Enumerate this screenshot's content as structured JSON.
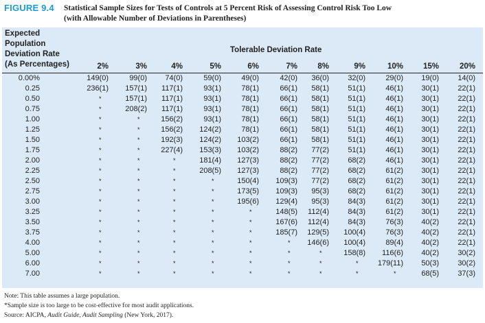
{
  "header": {
    "figure_label": "FIGURE 9.4",
    "title_line1": "Statistical Sample Sizes for Tests of Controls at 5 Percent Risk of Assessing Control Risk Too Low",
    "title_line2": "(with Allowable Number of Deviations in Parentheses)"
  },
  "table": {
    "row_header_lines": [
      "Expected",
      "Population",
      "Deviation Rate",
      "(As Percentages)"
    ],
    "group_header": "Tolerable Deviation Rate",
    "columns": [
      "2%",
      "3%",
      "4%",
      "5%",
      "6%",
      "7%",
      "8%",
      "9%",
      "10%",
      "15%",
      "20%"
    ],
    "rows": [
      {
        "rate": "0.00%",
        "cells": [
          "149(0)",
          "99(0)",
          "74(0)",
          "59(0)",
          "49(0)",
          "42(0)",
          "36(0)",
          "32(0)",
          "29(0)",
          "19(0)",
          "14(0)"
        ]
      },
      {
        "rate": "0.25",
        "cells": [
          "236(1)",
          "157(1)",
          "117(1)",
          "93(1)",
          "78(1)",
          "66(1)",
          "58(1)",
          "51(1)",
          "46(1)",
          "30(1)",
          "22(1)"
        ]
      },
      {
        "rate": "0.50",
        "cells": [
          "*",
          "157(1)",
          "117(1)",
          "93(1)",
          "78(1)",
          "66(1)",
          "58(1)",
          "51(1)",
          "46(1)",
          "30(1)",
          "22(1)"
        ]
      },
      {
        "rate": "0.75",
        "cells": [
          "*",
          "208(2)",
          "117(1)",
          "93(1)",
          "78(1)",
          "66(1)",
          "58(1)",
          "51(1)",
          "46(1)",
          "30(1)",
          "22(1)"
        ]
      },
      {
        "rate": "1.00",
        "cells": [
          "*",
          "*",
          "156(2)",
          "93(1)",
          "78(1)",
          "66(1)",
          "58(1)",
          "51(1)",
          "46(1)",
          "30(1)",
          "22(1)"
        ]
      },
      {
        "rate": "1.25",
        "cells": [
          "*",
          "*",
          "156(2)",
          "124(2)",
          "78(1)",
          "66(1)",
          "58(1)",
          "51(1)",
          "46(1)",
          "30(1)",
          "22(1)"
        ]
      },
      {
        "rate": "1.50",
        "cells": [
          "*",
          "*",
          "192(3)",
          "124(2)",
          "103(2)",
          "66(1)",
          "58(1)",
          "51(1)",
          "46(1)",
          "30(1)",
          "22(1)"
        ]
      },
      {
        "rate": "1.75",
        "cells": [
          "*",
          "*",
          "227(4)",
          "153(3)",
          "103(2)",
          "88(2)",
          "77(2)",
          "51(1)",
          "46(1)",
          "30(1)",
          "22(1)"
        ]
      },
      {
        "rate": "2.00",
        "cells": [
          "*",
          "*",
          "*",
          "181(4)",
          "127(3)",
          "88(2)",
          "77(2)",
          "68(2)",
          "46(1)",
          "30(1)",
          "22(1)"
        ]
      },
      {
        "rate": "2.25",
        "cells": [
          "*",
          "*",
          "*",
          "208(5)",
          "127(3)",
          "88(2)",
          "77(2)",
          "68(2)",
          "61(2)",
          "30(1)",
          "22(1)"
        ]
      },
      {
        "rate": "2.50",
        "cells": [
          "*",
          "*",
          "*",
          "*",
          "150(4)",
          "109(3)",
          "77(2)",
          "68(2)",
          "61(2)",
          "30(1)",
          "22(1)"
        ]
      },
      {
        "rate": "2.75",
        "cells": [
          "*",
          "*",
          "*",
          "*",
          "173(5)",
          "109(3)",
          "95(3)",
          "68(2)",
          "61(2)",
          "30(1)",
          "22(1)"
        ]
      },
      {
        "rate": "3.00",
        "cells": [
          "*",
          "*",
          "*",
          "*",
          "195(6)",
          "129(4)",
          "95(3)",
          "84(3)",
          "61(2)",
          "30(1)",
          "22(1)"
        ]
      },
      {
        "rate": "3.25",
        "cells": [
          "*",
          "*",
          "*",
          "*",
          "*",
          "148(5)",
          "112(4)",
          "84(3)",
          "61(2)",
          "30(1)",
          "22(1)"
        ]
      },
      {
        "rate": "3.50",
        "cells": [
          "*",
          "*",
          "*",
          "*",
          "*",
          "167(6)",
          "112(4)",
          "84(3)",
          "76(3)",
          "40(2)",
          "22(1)"
        ]
      },
      {
        "rate": "3.75",
        "cells": [
          "*",
          "*",
          "*",
          "*",
          "*",
          "185(7)",
          "129(5)",
          "100(4)",
          "76(3)",
          "40(2)",
          "22(1)"
        ]
      },
      {
        "rate": "4.00",
        "cells": [
          "*",
          "*",
          "*",
          "*",
          "*",
          "*",
          "146(6)",
          "100(4)",
          "89(4)",
          "40(2)",
          "22(1)"
        ]
      },
      {
        "rate": "5.00",
        "cells": [
          "*",
          "*",
          "*",
          "*",
          "*",
          "*",
          "*",
          "158(8)",
          "116(6)",
          "40(2)",
          "30(2)"
        ]
      },
      {
        "rate": "6.00",
        "cells": [
          "*",
          "*",
          "*",
          "*",
          "*",
          "*",
          "*",
          "*",
          "179(11)",
          "50(3)",
          "30(2)"
        ]
      },
      {
        "rate": "7.00",
        "cells": [
          "*",
          "*",
          "*",
          "*",
          "*",
          "*",
          "*",
          "*",
          "*",
          "68(5)",
          "37(3)"
        ]
      }
    ]
  },
  "notes": {
    "note1": "Note: This table assumes a large population.",
    "note2": "*Sample size is too large to be cost-effective for most audit applications.",
    "source_prefix": "Source: AICPA, ",
    "source_title": "Audit Guide, Audit Sampling",
    "source_suffix": " (New York, 2017)."
  },
  "colors": {
    "figure_label": "#1a9ad6",
    "table_background": "#dbeaf6",
    "text": "#222222"
  }
}
